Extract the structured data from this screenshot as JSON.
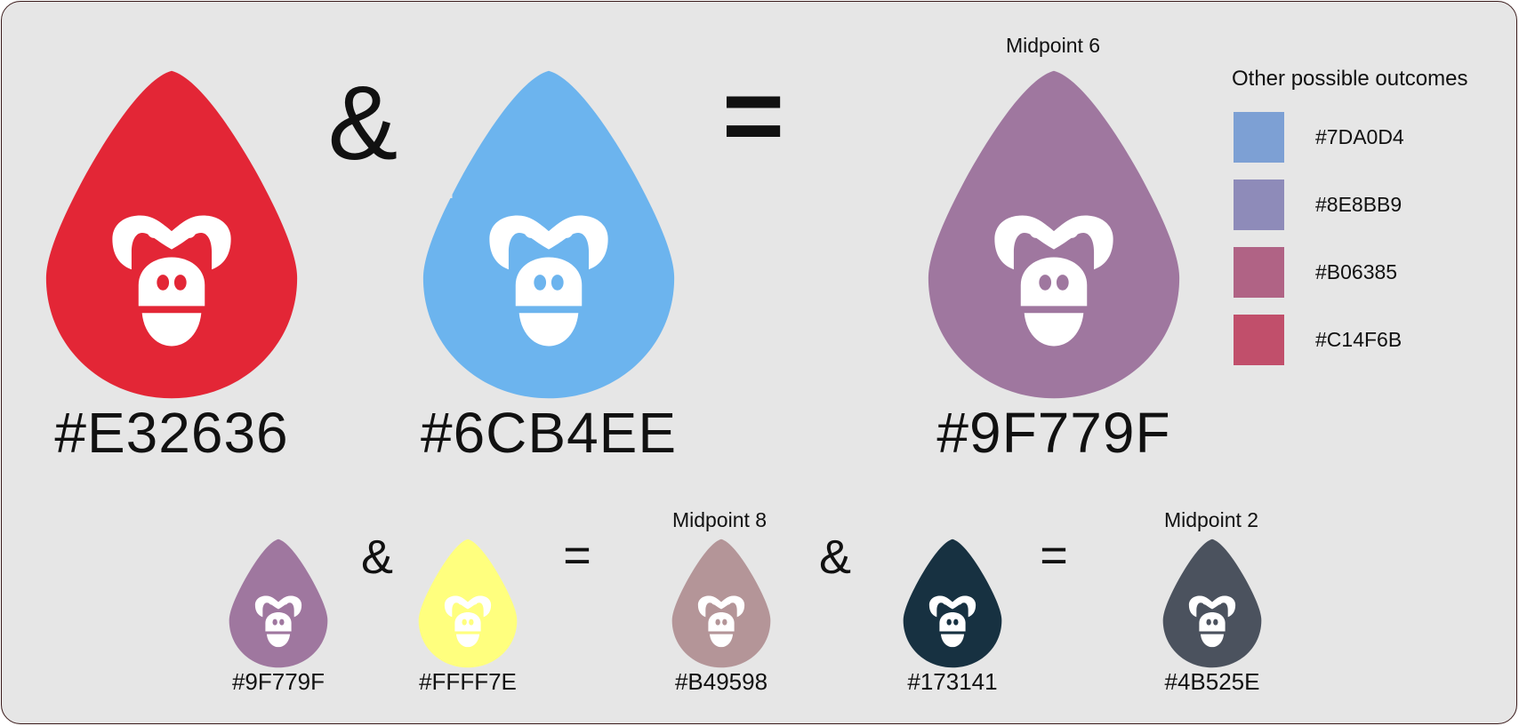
{
  "equation_top": {
    "left": {
      "hex": "#E32636",
      "color": "#E32636"
    },
    "op1": "&",
    "right": {
      "hex": "#6CB4EE",
      "color": "#6CB4EE"
    },
    "op2": "=",
    "result": {
      "midpoint_label": "Midpoint 6",
      "hex": "#9F779F",
      "color": "#9F779F"
    }
  },
  "legend": {
    "title": "Other possible outcomes",
    "items": [
      {
        "hex": "#7DA0D4",
        "color": "#7DA0D4"
      },
      {
        "hex": "#8E8BB9",
        "color": "#8E8BB9"
      },
      {
        "hex": "#B06385",
        "color": "#B06385"
      },
      {
        "hex": "#C14F6B",
        "color": "#C14F6B"
      }
    ]
  },
  "equation_bottom": {
    "a": {
      "hex": "#9F779F",
      "color": "#9F779F"
    },
    "op1": "&",
    "b": {
      "hex": "#FFFF7E",
      "color": "#FFFF7E"
    },
    "op2": "=",
    "c": {
      "midpoint_label": "Midpoint 8",
      "hex": "#B49598",
      "color": "#B49598"
    },
    "op3": "&",
    "d": {
      "hex": "#173141",
      "color": "#173141"
    },
    "op4": "=",
    "e": {
      "midpoint_label": "Midpoint 2",
      "hex": "#4B525E",
      "color": "#4B525E"
    }
  },
  "icons": {
    "drop": "gorilla-drop-icon"
  }
}
